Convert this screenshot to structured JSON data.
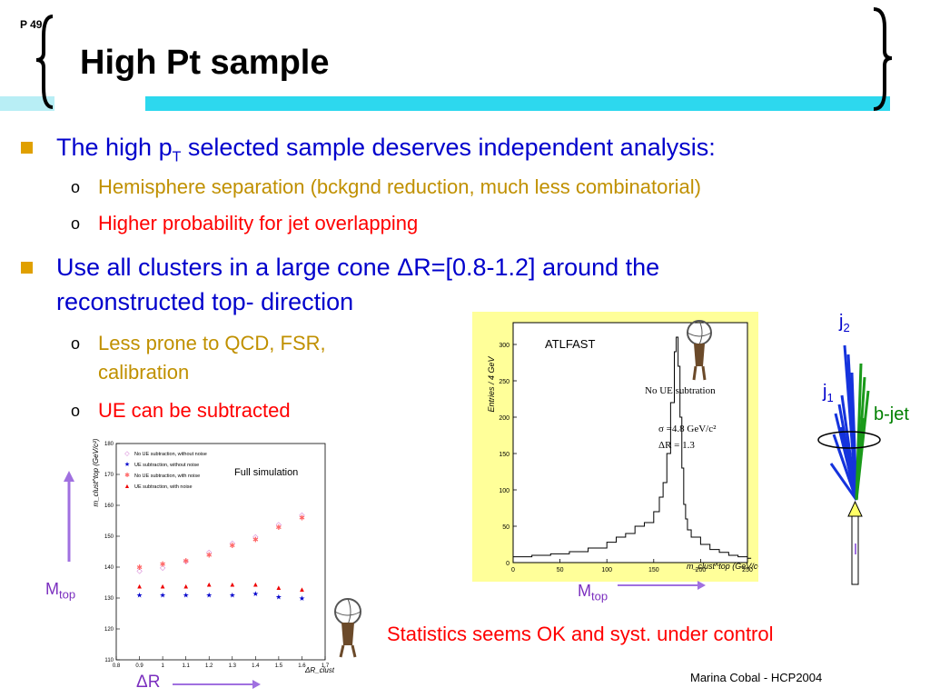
{
  "slide": {
    "page_label": "P 49",
    "title": "High Pt sample",
    "footer": "Marina Cobal - HCP2004",
    "bottom_note": "Statistics seems OK and syst. under control"
  },
  "bullets": {
    "b1_pre": "The high p",
    "b1_sub": "T",
    "b1_post": " selected sample deserves independent analysis:",
    "b1_1": "Hemisphere separation (bckgnd reduction, much less combinatorial)",
    "b1_2": "Higher probability for jet overlapping",
    "b2_line1_pre": "Use all clusters in a large cone ",
    "b2_delta": "Δ",
    "b2_line1_post": "R=[0.8-1.2] around the",
    "b2_line2": "reconstructed top- direction",
    "b2_1_a": "Less prone to QCD, FSR,",
    "b2_1_b": "calibration",
    "b2_2": "UE can be subtracted"
  },
  "histogram": {
    "label": "ATLFAST",
    "subtitle": "No UE subtration",
    "sigma": "σ =4.8 GeV/c²",
    "dr": "ΔR = 1.3",
    "ylabel": "Entries / 4 GeV",
    "xlabel": "m_clust^top (GeV/c²)",
    "yticks": [
      "0",
      "50",
      "100",
      "150",
      "200",
      "250",
      "300"
    ],
    "xticks": [
      "0",
      "50",
      "100",
      "150",
      "200",
      "250"
    ],
    "mtop_base": "M",
    "mtop_sub": "top"
  },
  "scatter": {
    "title": "Full simulation",
    "ylabel": "m_clust^top (GeV/c²)",
    "xlabel": "ΔR_clust",
    "yticks": [
      "110",
      "120",
      "130",
      "140",
      "150",
      "160",
      "170",
      "180"
    ],
    "xticks": [
      "0.8",
      "0.9",
      "1",
      "1.1",
      "1.2",
      "1.3",
      "1.4",
      "1.5",
      "1.6",
      "1.7"
    ],
    "legend": [
      "No UE subtraction, without noise",
      "UE subtraction, without noise",
      "No UE subtraction, with noise",
      "UE subtraction, with noise"
    ],
    "mtop_base": "M",
    "mtop_sub": "top",
    "dr_label": "ΔR"
  },
  "jets": {
    "j2_base": "j",
    "j2_sub": "2",
    "j1_base": "j",
    "j1_sub": "1",
    "bjet": "b-jet"
  },
  "chart_data": [
    {
      "type": "bar",
      "title": "ATLFAST",
      "xlabel": "m_clust^top (GeV/c²)",
      "ylabel": "Entries / 4 GeV",
      "xlim": [
        0,
        250
      ],
      "ylim": [
        0,
        330
      ],
      "x": [
        0,
        20,
        40,
        60,
        80,
        100,
        110,
        120,
        130,
        140,
        150,
        156,
        160,
        164,
        168,
        172,
        174,
        176,
        178,
        180,
        182,
        184,
        186,
        190,
        200,
        210,
        220,
        230,
        240,
        250
      ],
      "values": [
        8,
        10,
        12,
        15,
        20,
        28,
        35,
        40,
        50,
        55,
        70,
        90,
        110,
        150,
        220,
        290,
        310,
        270,
        200,
        130,
        80,
        60,
        45,
        35,
        25,
        18,
        14,
        10,
        8,
        6
      ]
    },
    {
      "type": "scatter",
      "title": "Full simulation",
      "xlabel": "ΔR_clust",
      "ylabel": "m_clust^top (GeV/c²)",
      "xlim": [
        0.8,
        1.7
      ],
      "ylim": [
        110,
        180
      ],
      "series": [
        {
          "name": "No UE subtraction, without noise",
          "x": [
            0.9,
            1,
            1.1,
            1.2,
            1.3,
            1.4,
            1.5,
            1.6
          ],
          "values": [
            139,
            140,
            142,
            145,
            148,
            150,
            154,
            157
          ]
        },
        {
          "name": "UE subtraction, without noise",
          "x": [
            0.9,
            1,
            1.1,
            1.2,
            1.3,
            1.4,
            1.5,
            1.6
          ],
          "values": [
            131,
            131,
            131,
            131,
            131,
            131.5,
            130.5,
            130
          ]
        },
        {
          "name": "No UE subtraction, with noise",
          "x": [
            0.9,
            1,
            1.1,
            1.2,
            1.3,
            1.4,
            1.5,
            1.6
          ],
          "values": [
            140,
            141,
            142,
            144,
            147,
            149,
            153,
            156
          ]
        },
        {
          "name": "UE subtraction, with noise",
          "x": [
            0.9,
            1,
            1.1,
            1.2,
            1.3,
            1.4,
            1.5,
            1.6
          ],
          "values": [
            134,
            134,
            134,
            134.5,
            134.5,
            134.5,
            133.5,
            133
          ]
        }
      ]
    }
  ]
}
